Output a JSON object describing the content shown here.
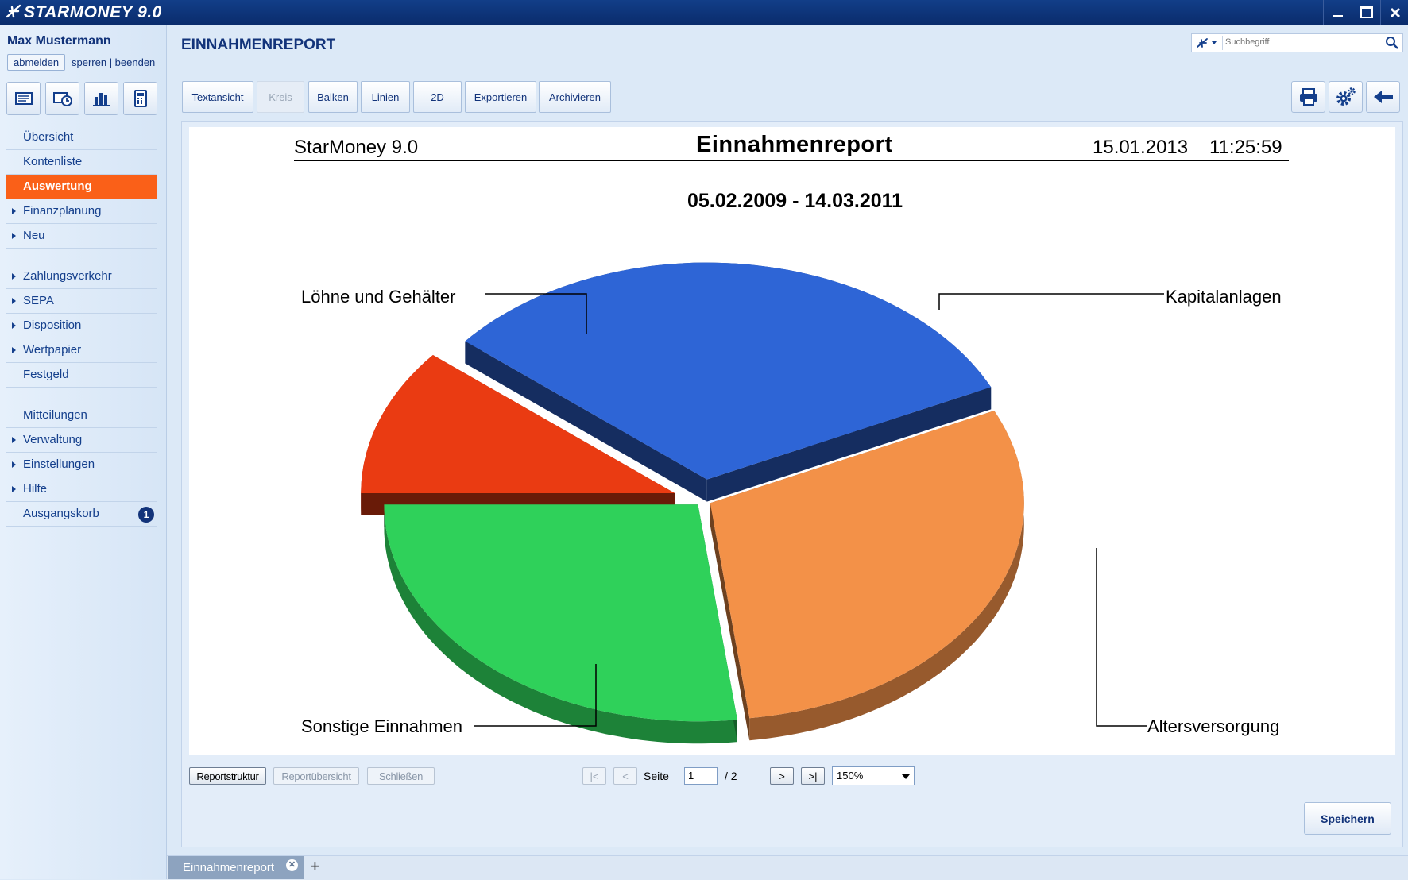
{
  "app": {
    "title": "STARMONEY 9.0"
  },
  "window_controls": [
    "minimize",
    "maximize",
    "close"
  ],
  "sidebar": {
    "user": "Max Mustermann",
    "logout_label": "abmelden",
    "lock_links": "sperren | beenden",
    "quick_icons": [
      "accounts-icon",
      "transfer-icon",
      "chart-icon",
      "calculator-icon"
    ],
    "items": [
      {
        "label": "Übersicht",
        "arrow": false
      },
      {
        "label": "Kontenliste",
        "arrow": false
      },
      {
        "label": "Auswertung",
        "arrow": false,
        "active": true
      },
      {
        "label": "Finanzplanung",
        "arrow": true
      },
      {
        "label": "Neu",
        "arrow": true
      },
      {
        "label": "Zahlungsverkehr",
        "arrow": true
      },
      {
        "label": "SEPA",
        "arrow": true
      },
      {
        "label": "Disposition",
        "arrow": true
      },
      {
        "label": "Wertpapier",
        "arrow": true
      },
      {
        "label": "Festgeld",
        "arrow": false
      },
      {
        "label": "Mitteilungen",
        "arrow": false
      },
      {
        "label": "Verwaltung",
        "arrow": true
      },
      {
        "label": "Einstellungen",
        "arrow": true
      },
      {
        "label": "Hilfe",
        "arrow": true
      },
      {
        "label": "Ausgangskorb",
        "arrow": false,
        "badge": "1"
      }
    ]
  },
  "header": {
    "title": "EINNAHMENREPORT",
    "search_placeholder": "Suchbegriff"
  },
  "toolbar": {
    "buttons": [
      {
        "label": "Textansicht",
        "enabled": true
      },
      {
        "label": "Kreis",
        "enabled": false
      },
      {
        "label": "Balken",
        "enabled": true
      },
      {
        "label": "Linien",
        "enabled": true
      },
      {
        "label": "2D",
        "enabled": true
      },
      {
        "label": "Exportieren",
        "enabled": true
      },
      {
        "label": "Archivieren",
        "enabled": true
      }
    ],
    "right_icons": [
      "print-icon",
      "settings-icon",
      "back-arrow-icon"
    ]
  },
  "report": {
    "app_name": "StarMoney 9.0",
    "title": "Einnahmenreport",
    "date": "15.01.2013",
    "time": "11:25:59",
    "period": "05.02.2009 - 14.03.2011"
  },
  "chart_data": {
    "type": "pie",
    "style": "3d-exploded",
    "title": "Einnahmenreport",
    "subtitle": "05.02.2009 - 14.03.2011",
    "slices": [
      {
        "label": "Löhne und Gehälter",
        "value": 27,
        "color": "#2fd15a"
      },
      {
        "label": "Kapitalanlagen",
        "value": 11,
        "color": "#ea3b12"
      },
      {
        "label": "Altersversorgung",
        "value": 32,
        "color": "#2e65d6"
      },
      {
        "label": "Sonstige Einnahmen",
        "value": 30,
        "color": "#f39148"
      }
    ]
  },
  "pager": {
    "buttons": [
      {
        "label": "Reportstruktur",
        "enabled": true
      },
      {
        "label": "Reportübersicht",
        "enabled": false
      },
      {
        "label": "Schließen",
        "enabled": false
      }
    ],
    "first": "|<",
    "prev": "<",
    "next": ">",
    "last": ">|",
    "page_label": "Seite",
    "page_value": "1",
    "page_total": "/ 2",
    "zoom": "150%"
  },
  "save_label": "Speichern",
  "tabs": [
    {
      "label": "Einnahmenreport",
      "active": true
    }
  ]
}
